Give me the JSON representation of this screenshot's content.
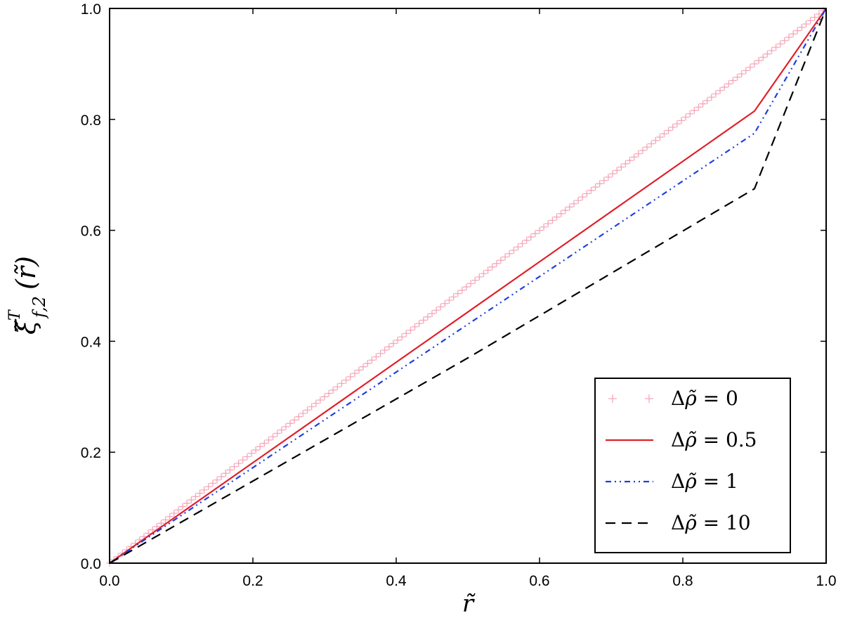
{
  "chart_data": {
    "type": "line",
    "xlabel": "r̃",
    "ylabel": "ξ̃",
    "ylabel_sub": "f,2",
    "ylabel_arg": "(r̃)",
    "ylabel_super": "T",
    "xlim": [
      0.0,
      1.0
    ],
    "ylim": [
      0.0,
      1.0
    ],
    "xticks": [
      "0.0",
      "0.2",
      "0.4",
      "0.6",
      "0.8",
      "1.0"
    ],
    "yticks": [
      "0.0",
      "0.2",
      "0.4",
      "0.6",
      "0.8",
      "1.0"
    ],
    "grid": false,
    "legend_position": "bottom-right",
    "series": [
      {
        "name": "Δρ̃ = 0",
        "legend_prefix": "Δ",
        "legend_var": "ρ̃",
        "legend_value": "0",
        "style": "markers-plus",
        "color": "#f4a7b9",
        "x": [
          0.0,
          1.0
        ],
        "y": [
          0.0,
          1.0
        ],
        "marker_step": 0.006
      },
      {
        "name": "Δρ̃ = 0.5",
        "legend_prefix": "Δ",
        "legend_var": "ρ̃",
        "legend_value": "0.5",
        "style": "solid",
        "color": "#e0202a",
        "x": [
          0.0,
          0.9,
          1.0
        ],
        "y": [
          0.0,
          0.815,
          1.0
        ]
      },
      {
        "name": "Δρ̃ = 1",
        "legend_prefix": "Δ",
        "legend_var": "ρ̃",
        "legend_value": "1",
        "style": "dash-dot-dot",
        "color": "#1f3fe0",
        "x": [
          0.0,
          0.9,
          1.0
        ],
        "y": [
          0.0,
          0.775,
          1.0
        ]
      },
      {
        "name": "Δρ̃ = 10",
        "legend_prefix": "Δ",
        "legend_var": "ρ̃",
        "legend_value": "10",
        "style": "dashed",
        "color": "#000000",
        "x": [
          0.0,
          0.5,
          0.9,
          1.0
        ],
        "y": [
          0.0,
          0.37,
          0.675,
          1.0
        ]
      }
    ]
  }
}
